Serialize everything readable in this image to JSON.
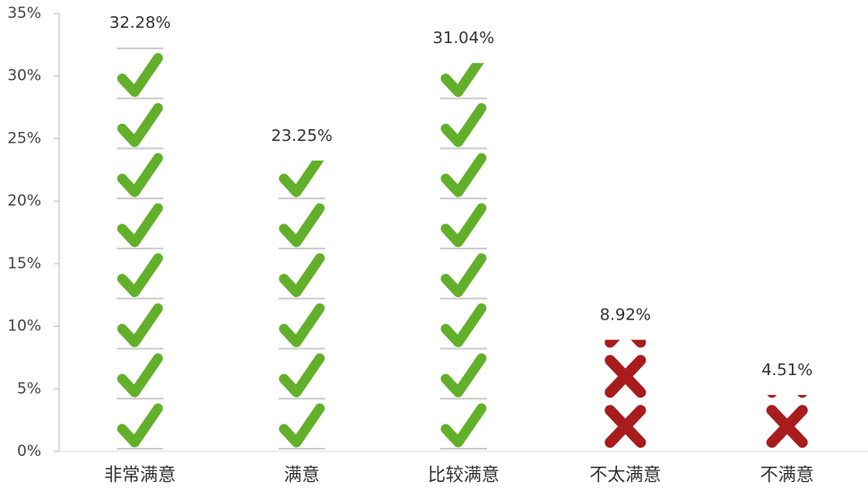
{
  "chart_data": {
    "type": "pictograph",
    "categories": [
      "非常满意",
      "满意",
      "比较满意",
      "不太满意",
      "不满意"
    ],
    "values": [
      32.28,
      23.25,
      31.04,
      8.92,
      4.51
    ],
    "value_labels": [
      "32.28%",
      "23.25%",
      "31.04%",
      "8.92%",
      "4.51%"
    ],
    "marker": [
      "check",
      "check",
      "check",
      "cross",
      "cross"
    ],
    "colors": [
      "#62b02a",
      "#62b02a",
      "#62b02a",
      "#a81c1c",
      "#a81c1c"
    ],
    "ylim": [
      0,
      35
    ],
    "yticks": [
      {
        "value": 0,
        "label": "0%"
      },
      {
        "value": 5,
        "label": "5%"
      },
      {
        "value": 10,
        "label": "10%"
      },
      {
        "value": 15,
        "label": "15%"
      },
      {
        "value": 20,
        "label": "20%"
      },
      {
        "value": 25,
        "label": "25%"
      },
      {
        "value": 30,
        "label": "30%"
      },
      {
        "value": 35,
        "label": "35%"
      }
    ]
  }
}
